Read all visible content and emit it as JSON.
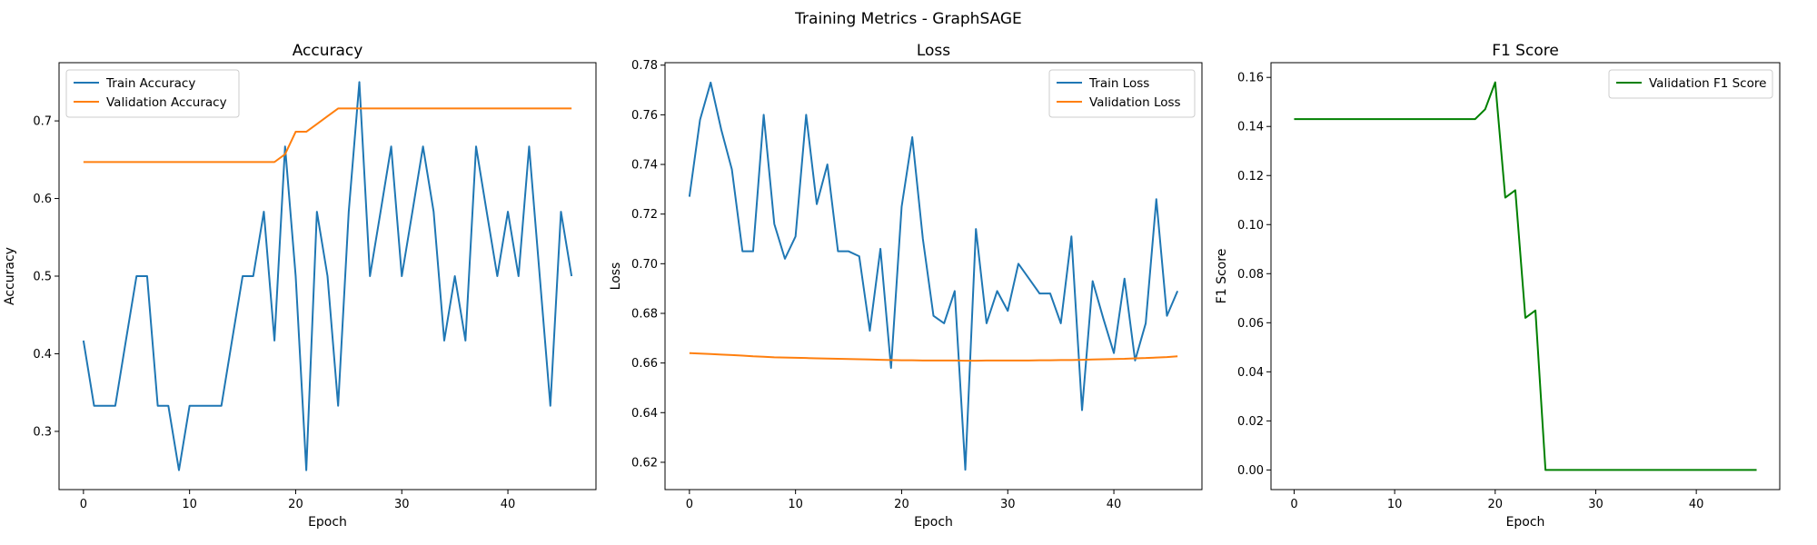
{
  "figure": {
    "suptitle": "Training Metrics - GraphSAGE"
  },
  "chart_data": [
    {
      "type": "line",
      "title": "Accuracy",
      "xlabel": "Epoch",
      "ylabel": "Accuracy",
      "xlim": [
        -2.3,
        48.3
      ],
      "ylim": [
        0.225,
        0.775
      ],
      "xticks": [
        0,
        10,
        20,
        30,
        40
      ],
      "yticks": [
        0.3,
        0.4,
        0.5,
        0.6,
        0.7
      ],
      "ytick_decimals": 1,
      "grid": false,
      "legend": "upper left",
      "series": [
        {
          "name": "Train Accuracy",
          "color": "#1f77b4",
          "x": [
            0,
            1,
            2,
            3,
            4,
            5,
            6,
            7,
            8,
            9,
            10,
            11,
            12,
            13,
            14,
            15,
            16,
            17,
            18,
            19,
            20,
            21,
            22,
            23,
            24,
            25,
            26,
            27,
            28,
            29,
            30,
            31,
            32,
            33,
            34,
            35,
            36,
            37,
            38,
            39,
            40,
            41,
            42,
            43,
            44,
            45,
            46
          ],
          "y": [
            0.417,
            0.333,
            0.333,
            0.333,
            0.417,
            0.5,
            0.5,
            0.333,
            0.333,
            0.25,
            0.333,
            0.333,
            0.333,
            0.333,
            0.417,
            0.5,
            0.5,
            0.583,
            0.417,
            0.667,
            0.5,
            0.25,
            0.583,
            0.5,
            0.333,
            0.583,
            0.75,
            0.5,
            0.583,
            0.667,
            0.5,
            0.583,
            0.667,
            0.583,
            0.417,
            0.5,
            0.417,
            0.667,
            0.583,
            0.5,
            0.583,
            0.5,
            0.667,
            0.5,
            0.333,
            0.583,
            0.5
          ]
        },
        {
          "name": "Validation Accuracy",
          "color": "#ff7f0e",
          "x": [
            0,
            1,
            2,
            3,
            4,
            5,
            6,
            7,
            8,
            9,
            10,
            11,
            12,
            13,
            14,
            15,
            16,
            17,
            18,
            19,
            20,
            21,
            22,
            23,
            24,
            25,
            26,
            27,
            28,
            29,
            30,
            31,
            32,
            33,
            34,
            35,
            36,
            37,
            38,
            39,
            40,
            41,
            42,
            43,
            44,
            45,
            46
          ],
          "y": [
            0.647,
            0.647,
            0.647,
            0.647,
            0.647,
            0.647,
            0.647,
            0.647,
            0.647,
            0.647,
            0.647,
            0.647,
            0.647,
            0.647,
            0.647,
            0.647,
            0.647,
            0.647,
            0.647,
            0.657,
            0.686,
            0.686,
            0.696,
            0.706,
            0.716,
            0.716,
            0.716,
            0.716,
            0.716,
            0.716,
            0.716,
            0.716,
            0.716,
            0.716,
            0.716,
            0.716,
            0.716,
            0.716,
            0.716,
            0.716,
            0.716,
            0.716,
            0.716,
            0.716,
            0.716,
            0.716,
            0.716
          ]
        }
      ]
    },
    {
      "type": "line",
      "title": "Loss",
      "xlabel": "Epoch",
      "ylabel": "Loss",
      "xlim": [
        -2.3,
        48.3
      ],
      "ylim": [
        0.609,
        0.781
      ],
      "xticks": [
        0,
        10,
        20,
        30,
        40
      ],
      "yticks": [
        0.62,
        0.64,
        0.66,
        0.68,
        0.7,
        0.72,
        0.74,
        0.76,
        0.78
      ],
      "ytick_decimals": 2,
      "grid": false,
      "legend": "upper right",
      "series": [
        {
          "name": "Train Loss",
          "color": "#1f77b4",
          "x": [
            0,
            1,
            2,
            3,
            4,
            5,
            6,
            7,
            8,
            9,
            10,
            11,
            12,
            13,
            14,
            15,
            16,
            17,
            18,
            19,
            20,
            21,
            22,
            23,
            24,
            25,
            26,
            27,
            28,
            29,
            30,
            31,
            32,
            33,
            34,
            35,
            36,
            37,
            38,
            39,
            40,
            41,
            42,
            43,
            44,
            45,
            46
          ],
          "y": [
            0.727,
            0.758,
            0.773,
            0.754,
            0.738,
            0.705,
            0.705,
            0.76,
            0.716,
            0.702,
            0.711,
            0.76,
            0.724,
            0.74,
            0.705,
            0.705,
            0.703,
            0.673,
            0.706,
            0.658,
            0.723,
            0.751,
            0.71,
            0.679,
            0.676,
            0.689,
            0.617,
            0.714,
            0.676,
            0.689,
            0.681,
            0.7,
            0.694,
            0.688,
            0.688,
            0.676,
            0.711,
            0.641,
            0.693,
            0.678,
            0.664,
            0.694,
            0.661,
            0.676,
            0.726,
            0.679,
            0.689
          ]
        },
        {
          "name": "Validation Loss",
          "color": "#ff7f0e",
          "x": [
            0,
            1,
            2,
            3,
            4,
            5,
            6,
            7,
            8,
            9,
            10,
            11,
            12,
            13,
            14,
            15,
            16,
            17,
            18,
            19,
            20,
            21,
            22,
            23,
            24,
            25,
            26,
            27,
            28,
            29,
            30,
            31,
            32,
            33,
            34,
            35,
            36,
            37,
            38,
            39,
            40,
            41,
            42,
            43,
            44,
            45,
            46
          ],
          "y": [
            0.664,
            0.6638,
            0.6636,
            0.6634,
            0.6632,
            0.663,
            0.6627,
            0.6625,
            0.6623,
            0.6622,
            0.6621,
            0.662,
            0.6619,
            0.6618,
            0.6617,
            0.6616,
            0.6615,
            0.6614,
            0.6613,
            0.6612,
            0.6611,
            0.6611,
            0.661,
            0.661,
            0.661,
            0.661,
            0.6609,
            0.6609,
            0.661,
            0.661,
            0.661,
            0.661,
            0.661,
            0.6611,
            0.6611,
            0.6612,
            0.6612,
            0.6613,
            0.6614,
            0.6615,
            0.6616,
            0.6617,
            0.6619,
            0.662,
            0.6622,
            0.6624,
            0.6627
          ]
        }
      ]
    },
    {
      "type": "line",
      "title": "F1 Score",
      "xlabel": "Epoch",
      "ylabel": "F1 Score",
      "xlim": [
        -2.3,
        48.3
      ],
      "ylim": [
        -0.008,
        0.166
      ],
      "xticks": [
        0,
        10,
        20,
        30,
        40
      ],
      "yticks": [
        0.0,
        0.02,
        0.04,
        0.06,
        0.08,
        0.1,
        0.12,
        0.14,
        0.16
      ],
      "ytick_decimals": 2,
      "grid": false,
      "legend": "upper right",
      "series": [
        {
          "name": "Validation F1 Score",
          "color": "#008000",
          "x": [
            0,
            1,
            2,
            3,
            4,
            5,
            6,
            7,
            8,
            9,
            10,
            11,
            12,
            13,
            14,
            15,
            16,
            17,
            18,
            19,
            20,
            21,
            22,
            23,
            24,
            25,
            26,
            27,
            28,
            29,
            30,
            31,
            32,
            33,
            34,
            35,
            36,
            37,
            38,
            39,
            40,
            41,
            42,
            43,
            44,
            45,
            46
          ],
          "y": [
            0.143,
            0.143,
            0.143,
            0.143,
            0.143,
            0.143,
            0.143,
            0.143,
            0.143,
            0.143,
            0.143,
            0.143,
            0.143,
            0.143,
            0.143,
            0.143,
            0.143,
            0.143,
            0.143,
            0.147,
            0.158,
            0.111,
            0.114,
            0.062,
            0.065,
            0.0,
            0.0,
            0.0,
            0.0,
            0.0,
            0.0,
            0.0,
            0.0,
            0.0,
            0.0,
            0.0,
            0.0,
            0.0,
            0.0,
            0.0,
            0.0,
            0.0,
            0.0,
            0.0,
            0.0,
            0.0,
            0.0
          ]
        }
      ]
    }
  ]
}
